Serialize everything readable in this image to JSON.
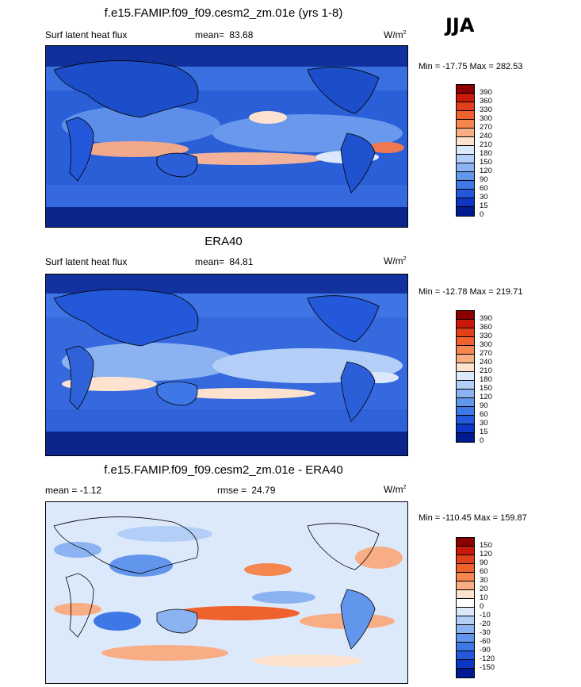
{
  "season": "JJA",
  "panels": [
    {
      "title": "f.e15.FAMIP.f09_f09.cesm2_zm.01e (yrs 1-8)",
      "left_label": "Surf latent heat flux",
      "stat_label": "mean=",
      "stat_value": "83.68",
      "units": "W/m",
      "units_sup": "2",
      "minmax": "Min = -17.75 Max = 282.53",
      "colorbar": {
        "colors": [
          "#8b0000",
          "#c8190a",
          "#e0401a",
          "#f0622d",
          "#f5864e",
          "#f9ad85",
          "#fde3cf",
          "#dce9fb",
          "#b4cff7",
          "#8bb3f2",
          "#6296ec",
          "#3e78e6",
          "#2358db",
          "#0d36c4",
          "#001a8f"
        ],
        "ticks": [
          "390",
          "360",
          "330",
          "300",
          "270",
          "240",
          "210",
          "180",
          "150",
          "120",
          "90",
          "60",
          "30",
          "15",
          "0"
        ]
      }
    },
    {
      "title": "ERA40",
      "left_label": "Surf latent heat flux",
      "stat_label": "mean=",
      "stat_value": "84.81",
      "units": "W/m",
      "units_sup": "2",
      "minmax": "Min = -12.78 Max = 219.71",
      "colorbar": {
        "colors": [
          "#8b0000",
          "#c8190a",
          "#e0401a",
          "#f0622d",
          "#f5864e",
          "#f9ad85",
          "#fde3cf",
          "#dce9fb",
          "#b4cff7",
          "#8bb3f2",
          "#6296ec",
          "#3e78e6",
          "#2358db",
          "#0d36c4",
          "#001a8f"
        ],
        "ticks": [
          "390",
          "360",
          "330",
          "300",
          "270",
          "240",
          "210",
          "180",
          "150",
          "120",
          "90",
          "60",
          "30",
          "15",
          "0"
        ]
      }
    },
    {
      "title": "f.e15.FAMIP.f09_f09.cesm2_zm.01e - ERA40",
      "left_label": "mean =  -1.12",
      "stat_label": "rmse =",
      "stat_value": "24.79",
      "units": "W/m",
      "units_sup": "2",
      "minmax": "Min = -110.45 Max = 159.87",
      "colorbar": {
        "colors": [
          "#8b0000",
          "#c8190a",
          "#e0401a",
          "#f0622d",
          "#f5864e",
          "#f9ad85",
          "#fde3cf",
          "#ffffff",
          "#dce9fb",
          "#b4cff7",
          "#8bb3f2",
          "#6296ec",
          "#3e78e6",
          "#2358db",
          "#0d36c4",
          "#001a8f"
        ],
        "ticks": [
          "150",
          "120",
          "90",
          "60",
          "30",
          "20",
          "10",
          "0",
          "-10",
          "-20",
          "-30",
          "-60",
          "-90",
          "-120",
          "-150"
        ]
      }
    }
  ]
}
